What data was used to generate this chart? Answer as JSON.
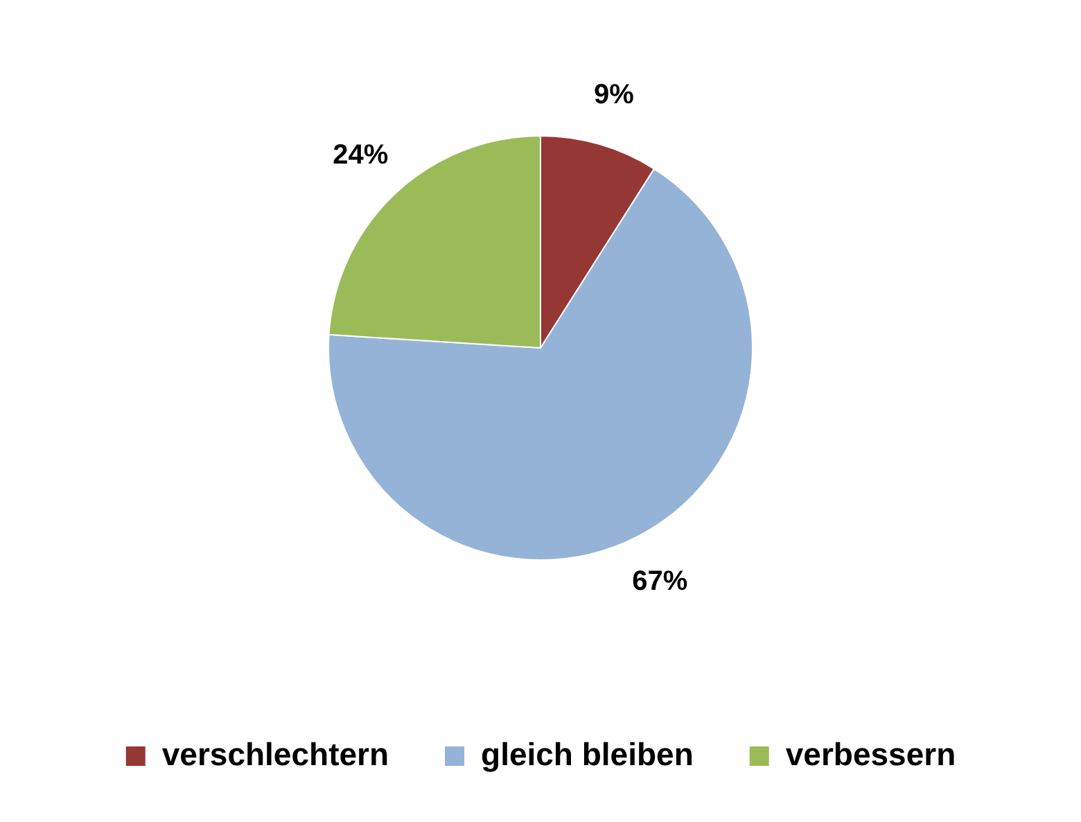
{
  "chart_data": {
    "type": "pie",
    "categories": [
      "verschlechtern",
      "gleich bleiben",
      "verbessern"
    ],
    "values": [
      9,
      67,
      24
    ],
    "colors": [
      "#953735",
      "#95b3d7",
      "#9bbb59"
    ],
    "value_labels": [
      "9%",
      "67%",
      "24%"
    ],
    "legend": "bottom"
  }
}
